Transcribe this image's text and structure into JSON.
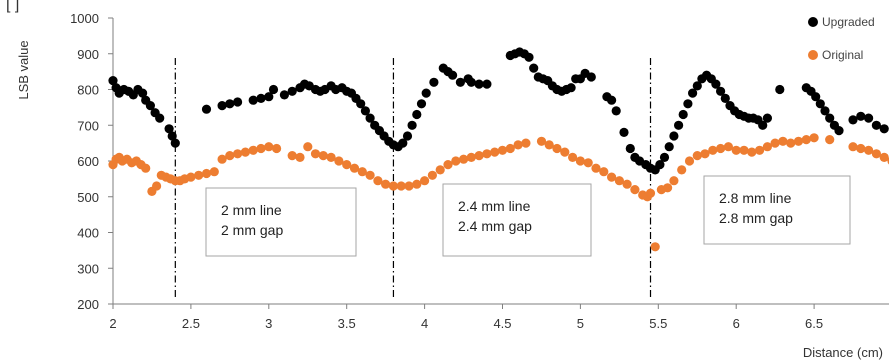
{
  "chart_data": {
    "type": "scatter",
    "title": "",
    "xlabel": "Distance (cm)",
    "ylabel": "LSB value",
    "xlim": [
      2,
      7
    ],
    "ylim": [
      200,
      1000
    ],
    "x_ticks": [
      2,
      2.5,
      3,
      3.5,
      4,
      4.5,
      5,
      5.5,
      6,
      6.5,
      7
    ],
    "x_tick_labels": [
      "2",
      "2.5",
      "3",
      "3.5",
      "4",
      "4.5",
      "5",
      "5.5",
      "6",
      "6.5",
      "7"
    ],
    "y_ticks": [
      200,
      300,
      400,
      500,
      600,
      700,
      800,
      900,
      1000
    ],
    "grid": false,
    "legend_position": "top-right",
    "colors": {
      "upgraded": "#000000",
      "original": "#ED7D31",
      "axis": "#7f7f7f"
    },
    "series": [
      {
        "name": "Upgraded",
        "points": [
          [
            2.0,
            825
          ],
          [
            2.02,
            805
          ],
          [
            2.04,
            790
          ],
          [
            2.07,
            800
          ],
          [
            2.1,
            795
          ],
          [
            2.13,
            785
          ],
          [
            2.16,
            800
          ],
          [
            2.19,
            790
          ],
          [
            2.21,
            770
          ],
          [
            2.24,
            755
          ],
          [
            2.27,
            735
          ],
          [
            2.3,
            720
          ],
          [
            2.36,
            690
          ],
          [
            2.38,
            670
          ],
          [
            2.4,
            650
          ],
          [
            2.6,
            745
          ],
          [
            2.7,
            755
          ],
          [
            2.75,
            760
          ],
          [
            2.8,
            765
          ],
          [
            2.9,
            770
          ],
          [
            2.95,
            775
          ],
          [
            3.0,
            780
          ],
          [
            3.03,
            800
          ],
          [
            3.1,
            785
          ],
          [
            3.15,
            795
          ],
          [
            3.2,
            805
          ],
          [
            3.23,
            815
          ],
          [
            3.26,
            810
          ],
          [
            3.3,
            800
          ],
          [
            3.33,
            795
          ],
          [
            3.36,
            800
          ],
          [
            3.4,
            810
          ],
          [
            3.43,
            800
          ],
          [
            3.47,
            805
          ],
          [
            3.5,
            795
          ],
          [
            3.53,
            790
          ],
          [
            3.56,
            775
          ],
          [
            3.59,
            760
          ],
          [
            3.62,
            740
          ],
          [
            3.65,
            720
          ],
          [
            3.68,
            700
          ],
          [
            3.71,
            685
          ],
          [
            3.74,
            670
          ],
          [
            3.77,
            655
          ],
          [
            3.8,
            645
          ],
          [
            3.83,
            640
          ],
          [
            3.86,
            650
          ],
          [
            3.89,
            670
          ],
          [
            3.92,
            700
          ],
          [
            3.95,
            730
          ],
          [
            3.98,
            760
          ],
          [
            4.01,
            790
          ],
          [
            4.06,
            820
          ],
          [
            4.12,
            860
          ],
          [
            4.15,
            850
          ],
          [
            4.18,
            840
          ],
          [
            4.23,
            820
          ],
          [
            4.28,
            830
          ],
          [
            4.3,
            820
          ],
          [
            4.35,
            815
          ],
          [
            4.4,
            815
          ],
          [
            4.55,
            895
          ],
          [
            4.58,
            900
          ],
          [
            4.61,
            905
          ],
          [
            4.64,
            900
          ],
          [
            4.67,
            890
          ],
          [
            4.7,
            860
          ],
          [
            4.73,
            835
          ],
          [
            4.76,
            830
          ],
          [
            4.79,
            825
          ],
          [
            4.82,
            810
          ],
          [
            4.85,
            800
          ],
          [
            4.88,
            795
          ],
          [
            4.91,
            800
          ],
          [
            4.94,
            805
          ],
          [
            4.97,
            830
          ],
          [
            5.0,
            830
          ],
          [
            5.03,
            845
          ],
          [
            5.07,
            835
          ],
          [
            5.17,
            780
          ],
          [
            5.2,
            770
          ],
          [
            5.23,
            740
          ],
          [
            5.28,
            680
          ],
          [
            5.32,
            635
          ],
          [
            5.35,
            610
          ],
          [
            5.38,
            600
          ],
          [
            5.42,
            590
          ],
          [
            5.45,
            580
          ],
          [
            5.48,
            575
          ],
          [
            5.51,
            590
          ],
          [
            5.54,
            610
          ],
          [
            5.57,
            640
          ],
          [
            5.6,
            670
          ],
          [
            5.63,
            700
          ],
          [
            5.66,
            730
          ],
          [
            5.69,
            760
          ],
          [
            5.72,
            790
          ],
          [
            5.75,
            810
          ],
          [
            5.78,
            830
          ],
          [
            5.81,
            840
          ],
          [
            5.84,
            830
          ],
          [
            5.87,
            815
          ],
          [
            5.9,
            795
          ],
          [
            5.93,
            775
          ],
          [
            5.96,
            755
          ],
          [
            5.99,
            740
          ],
          [
            6.02,
            730
          ],
          [
            6.05,
            725
          ],
          [
            6.08,
            720
          ],
          [
            6.11,
            720
          ],
          [
            6.14,
            715
          ],
          [
            6.17,
            700
          ],
          [
            6.2,
            720
          ],
          [
            6.28,
            800
          ],
          [
            6.45,
            805
          ],
          [
            6.48,
            795
          ],
          [
            6.51,
            780
          ],
          [
            6.54,
            760
          ],
          [
            6.57,
            740
          ],
          [
            6.6,
            720
          ],
          [
            6.63,
            700
          ],
          [
            6.66,
            685
          ],
          [
            6.75,
            715
          ],
          [
            6.8,
            725
          ],
          [
            6.85,
            720
          ],
          [
            6.9,
            700
          ],
          [
            6.95,
            690
          ]
        ]
      },
      {
        "name": "Original",
        "points": [
          [
            2.0,
            590
          ],
          [
            2.02,
            605
          ],
          [
            2.04,
            610
          ],
          [
            2.06,
            600
          ],
          [
            2.09,
            605
          ],
          [
            2.12,
            595
          ],
          [
            2.15,
            600
          ],
          [
            2.18,
            590
          ],
          [
            2.21,
            580
          ],
          [
            2.25,
            515
          ],
          [
            2.28,
            530
          ],
          [
            2.31,
            560
          ],
          [
            2.34,
            555
          ],
          [
            2.37,
            550
          ],
          [
            2.4,
            545
          ],
          [
            2.43,
            545
          ],
          [
            2.46,
            550
          ],
          [
            2.5,
            555
          ],
          [
            2.55,
            560
          ],
          [
            2.6,
            565
          ],
          [
            2.65,
            570
          ],
          [
            2.7,
            605
          ],
          [
            2.75,
            615
          ],
          [
            2.8,
            620
          ],
          [
            2.85,
            625
          ],
          [
            2.9,
            630
          ],
          [
            2.95,
            635
          ],
          [
            3.0,
            640
          ],
          [
            3.05,
            635
          ],
          [
            3.15,
            615
          ],
          [
            3.2,
            610
          ],
          [
            3.25,
            640
          ],
          [
            3.3,
            620
          ],
          [
            3.35,
            615
          ],
          [
            3.4,
            610
          ],
          [
            3.45,
            600
          ],
          [
            3.5,
            590
          ],
          [
            3.55,
            580
          ],
          [
            3.6,
            570
          ],
          [
            3.65,
            560
          ],
          [
            3.7,
            545
          ],
          [
            3.75,
            535
          ],
          [
            3.8,
            530
          ],
          [
            3.85,
            530
          ],
          [
            3.9,
            530
          ],
          [
            3.95,
            535
          ],
          [
            4.0,
            545
          ],
          [
            4.05,
            560
          ],
          [
            4.1,
            575
          ],
          [
            4.15,
            590
          ],
          [
            4.2,
            600
          ],
          [
            4.25,
            605
          ],
          [
            4.3,
            610
          ],
          [
            4.35,
            615
          ],
          [
            4.4,
            620
          ],
          [
            4.45,
            625
          ],
          [
            4.5,
            630
          ],
          [
            4.55,
            635
          ],
          [
            4.6,
            645
          ],
          [
            4.65,
            650
          ],
          [
            4.75,
            655
          ],
          [
            4.8,
            645
          ],
          [
            4.85,
            635
          ],
          [
            4.9,
            625
          ],
          [
            4.95,
            610
          ],
          [
            5.0,
            600
          ],
          [
            5.05,
            595
          ],
          [
            5.1,
            580
          ],
          [
            5.15,
            570
          ],
          [
            5.2,
            555
          ],
          [
            5.25,
            545
          ],
          [
            5.3,
            535
          ],
          [
            5.35,
            520
          ],
          [
            5.4,
            505
          ],
          [
            5.43,
            500
          ],
          [
            5.45,
            510
          ],
          [
            5.48,
            360
          ],
          [
            5.52,
            520
          ],
          [
            5.56,
            525
          ],
          [
            5.6,
            545
          ],
          [
            5.65,
            575
          ],
          [
            5.7,
            600
          ],
          [
            5.75,
            615
          ],
          [
            5.8,
            620
          ],
          [
            5.85,
            630
          ],
          [
            5.9,
            635
          ],
          [
            5.95,
            640
          ],
          [
            6.0,
            630
          ],
          [
            6.05,
            630
          ],
          [
            6.1,
            625
          ],
          [
            6.15,
            630
          ],
          [
            6.2,
            640
          ],
          [
            6.25,
            650
          ],
          [
            6.3,
            655
          ],
          [
            6.35,
            650
          ],
          [
            6.4,
            655
          ],
          [
            6.45,
            660
          ],
          [
            6.5,
            665
          ],
          [
            6.6,
            660
          ],
          [
            6.75,
            640
          ],
          [
            6.8,
            635
          ],
          [
            6.85,
            630
          ],
          [
            6.9,
            620
          ],
          [
            6.95,
            610
          ],
          [
            7.0,
            600
          ]
        ]
      }
    ],
    "annotations": [
      {
        "lines": [
          "2 mm line",
          "2 mm gap"
        ]
      },
      {
        "lines": [
          "2.4 mm line",
          "2.4 mm gap"
        ]
      },
      {
        "lines": [
          "2.8 mm line",
          "2.8 mm gap"
        ]
      }
    ],
    "reference_lines_x": [
      2.4,
      3.8,
      5.45
    ],
    "corner_text": "[ ]"
  }
}
